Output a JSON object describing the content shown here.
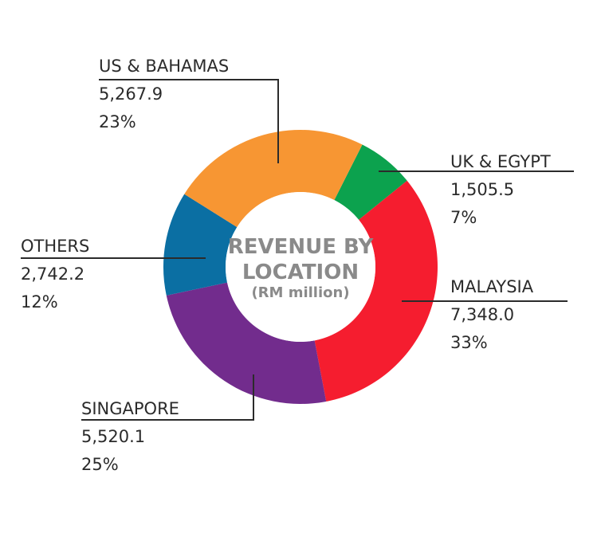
{
  "chart_data": {
    "type": "pie",
    "title": "REVENUE BY LOCATION",
    "subtitle": "(RM million)",
    "slices": [
      {
        "name": "UK & EGYPT",
        "value": 1505.5,
        "value_label": "1,505.5",
        "percent_label": "7%",
        "color": "#0ca24e"
      },
      {
        "name": "MALAYSIA",
        "value": 7348.0,
        "value_label": "7,348.0",
        "percent_label": "33%",
        "color": "#f51d2f"
      },
      {
        "name": "SINGAPORE",
        "value": 5520.1,
        "value_label": "5,520.1",
        "percent_label": "25%",
        "color": "#722c8d"
      },
      {
        "name": "OTHERS",
        "value": 2742.2,
        "value_label": "2,742.2",
        "percent_label": "12%",
        "color": "#0b6fa3"
      },
      {
        "name": "US & BAHAMAS",
        "value": 5267.9,
        "value_label": "5,267.9",
        "percent_label": "23%",
        "color": "#f79633"
      }
    ]
  }
}
